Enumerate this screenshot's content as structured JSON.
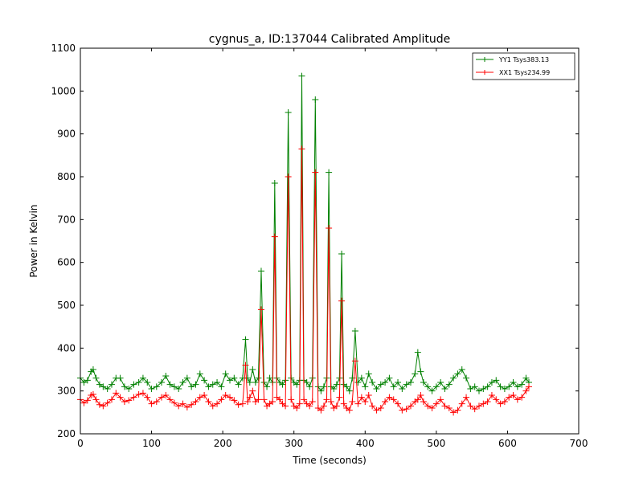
{
  "chart_data": {
    "type": "line",
    "title": "cygnus_a, ID:137044 Calibrated Amplitude",
    "xlabel": "Time (seconds)",
    "ylabel": "Power in Kelvin",
    "xlim": [
      0,
      700
    ],
    "ylim": [
      200,
      1100
    ],
    "xticks": [
      0,
      100,
      200,
      300,
      400,
      500,
      600,
      700
    ],
    "yticks": [
      200,
      300,
      400,
      500,
      600,
      700,
      800,
      900,
      1000,
      1100
    ],
    "grid": false,
    "legend_position": "top-right",
    "marker": "+",
    "series": [
      {
        "name": "YY1 Tsys383.13",
        "color": "#008000",
        "x": [
          0,
          5,
          10,
          15,
          18,
          22,
          27,
          32,
          38,
          44,
          50,
          56,
          62,
          68,
          75,
          82,
          88,
          94,
          100,
          107,
          114,
          120,
          126,
          132,
          138,
          144,
          150,
          156,
          162,
          168,
          174,
          180,
          186,
          192,
          198,
          204,
          210,
          216,
          222,
          228,
          232,
          235,
          238,
          242,
          246,
          250,
          254,
          258,
          262,
          266,
          270,
          273,
          276,
          280,
          284,
          288,
          292,
          296,
          300,
          304,
          308,
          311,
          314,
          318,
          322,
          326,
          330,
          334,
          338,
          342,
          346,
          349,
          352,
          356,
          360,
          364,
          367,
          370,
          374,
          378,
          382,
          386,
          390,
          395,
          400,
          405,
          410,
          416,
          422,
          428,
          434,
          440,
          446,
          452,
          458,
          464,
          470,
          474,
          478,
          482,
          488,
          494,
          500,
          506,
          512,
          518,
          524,
          530,
          536,
          542,
          548,
          554,
          560,
          566,
          572,
          578,
          584,
          590,
          596,
          602,
          608,
          614,
          620,
          626,
          630
        ],
        "y": [
          330,
          320,
          325,
          345,
          350,
          330,
          315,
          310,
          305,
          315,
          330,
          330,
          310,
          305,
          315,
          320,
          330,
          320,
          305,
          310,
          320,
          335,
          315,
          310,
          305,
          320,
          330,
          310,
          315,
          340,
          325,
          310,
          315,
          320,
          310,
          340,
          325,
          330,
          315,
          330,
          420,
          330,
          320,
          350,
          320,
          330,
          580,
          320,
          310,
          330,
          320,
          785,
          330,
          320,
          315,
          325,
          950,
          330,
          320,
          315,
          325,
          1035,
          325,
          320,
          310,
          330,
          980,
          310,
          300,
          310,
          330,
          810,
          310,
          305,
          315,
          330,
          620,
          315,
          310,
          300,
          330,
          440,
          320,
          330,
          310,
          340,
          320,
          305,
          315,
          320,
          330,
          310,
          320,
          305,
          315,
          320,
          340,
          390,
          345,
          320,
          310,
          300,
          310,
          320,
          305,
          315,
          330,
          340,
          350,
          330,
          305,
          310,
          300,
          305,
          310,
          320,
          325,
          310,
          305,
          310,
          320,
          310,
          315,
          330,
          320
        ]
      },
      {
        "name": "XX1 Tsys234.99",
        "color": "#ff0000",
        "x": [
          0,
          5,
          10,
          15,
          18,
          22,
          27,
          32,
          38,
          44,
          50,
          56,
          62,
          68,
          75,
          82,
          88,
          94,
          100,
          107,
          114,
          120,
          126,
          132,
          138,
          144,
          150,
          156,
          162,
          168,
          174,
          180,
          186,
          192,
          198,
          204,
          210,
          216,
          222,
          228,
          232,
          235,
          238,
          242,
          246,
          250,
          254,
          258,
          262,
          266,
          270,
          273,
          276,
          280,
          284,
          288,
          292,
          296,
          300,
          304,
          308,
          311,
          314,
          318,
          322,
          326,
          330,
          334,
          338,
          342,
          346,
          349,
          352,
          356,
          360,
          364,
          367,
          370,
          374,
          378,
          382,
          386,
          390,
          395,
          400,
          405,
          410,
          416,
          422,
          428,
          434,
          440,
          446,
          452,
          458,
          464,
          470,
          474,
          478,
          482,
          488,
          494,
          500,
          506,
          512,
          518,
          524,
          530,
          536,
          542,
          548,
          554,
          560,
          566,
          572,
          578,
          584,
          590,
          596,
          602,
          608,
          614,
          620,
          626,
          630
        ],
        "y": [
          280,
          272,
          278,
          290,
          292,
          280,
          268,
          265,
          272,
          280,
          295,
          285,
          275,
          278,
          285,
          292,
          295,
          285,
          270,
          275,
          285,
          290,
          280,
          272,
          265,
          270,
          262,
          268,
          275,
          285,
          290,
          275,
          265,
          270,
          280,
          290,
          285,
          278,
          268,
          270,
          360,
          275,
          285,
          300,
          275,
          280,
          490,
          280,
          265,
          270,
          275,
          660,
          285,
          280,
          270,
          265,
          800,
          280,
          265,
          260,
          270,
          865,
          280,
          270,
          265,
          275,
          810,
          260,
          255,
          265,
          280,
          680,
          275,
          260,
          265,
          285,
          510,
          270,
          260,
          255,
          275,
          370,
          270,
          285,
          275,
          290,
          265,
          255,
          260,
          275,
          285,
          280,
          270,
          255,
          258,
          265,
          275,
          280,
          290,
          275,
          265,
          260,
          270,
          280,
          265,
          260,
          250,
          255,
          270,
          285,
          265,
          258,
          265,
          270,
          275,
          290,
          280,
          270,
          275,
          285,
          290,
          280,
          285,
          300,
          310
        ]
      }
    ]
  }
}
